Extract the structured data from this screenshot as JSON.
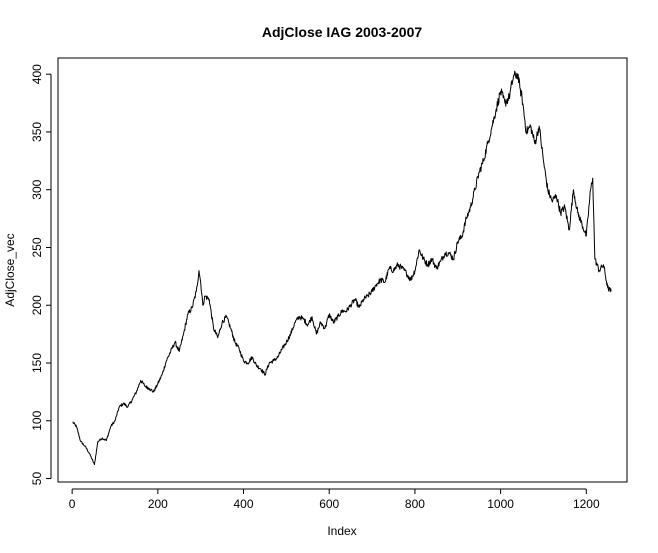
{
  "chart_data": {
    "type": "line",
    "title": "AdjClose IAG 2003-2007",
    "xlabel": "Index",
    "ylabel": "AdjClose_vec",
    "xlim": [
      -33,
      1295
    ],
    "ylim": [
      47,
      414
    ],
    "x_ticks": [
      0,
      200,
      400,
      600,
      800,
      1000,
      1200
    ],
    "y_ticks": [
      50,
      100,
      150,
      200,
      250,
      300,
      350,
      400
    ],
    "grid": false,
    "legend": "none",
    "line_color": "#000000",
    "series": [
      {
        "x": [
          1,
          10,
          20,
          30,
          40,
          52,
          60,
          70,
          80,
          90,
          100,
          110,
          120,
          130,
          140,
          150,
          160,
          170,
          180,
          190,
          200,
          210,
          220,
          230,
          240,
          250,
          260,
          270,
          280,
          290,
          296,
          300,
          305,
          310,
          320,
          330,
          340,
          350,
          360,
          370,
          380,
          390,
          400,
          410,
          420,
          430,
          440,
          450,
          460,
          470,
          480,
          490,
          500,
          510,
          520,
          530,
          540,
          550,
          560,
          570,
          580,
          590,
          600,
          610,
          620,
          630,
          640,
          650,
          660,
          670,
          680,
          690,
          700,
          710,
          720,
          730,
          740,
          750,
          760,
          770,
          780,
          790,
          800,
          810,
          820,
          830,
          840,
          850,
          860,
          870,
          880,
          890,
          900,
          910,
          920,
          930,
          940,
          950,
          960,
          970,
          980,
          990,
          1000,
          1010,
          1020,
          1030,
          1040,
          1045,
          1050,
          1060,
          1070,
          1080,
          1090,
          1100,
          1110,
          1120,
          1130,
          1140,
          1150,
          1160,
          1170,
          1180,
          1190,
          1200,
          1210,
          1215,
          1220,
          1230,
          1240,
          1250,
          1258
        ],
        "y": [
          99,
          95,
          82,
          78,
          72,
          62,
          82,
          85,
          83,
          95,
          100,
          112,
          115,
          112,
          118,
          125,
          135,
          130,
          128,
          125,
          132,
          140,
          152,
          160,
          168,
          160,
          175,
          192,
          198,
          212,
          230,
          220,
          200,
          208,
          205,
          180,
          172,
          185,
          190,
          180,
          168,
          162,
          152,
          150,
          155,
          148,
          145,
          140,
          150,
          152,
          155,
          162,
          168,
          175,
          185,
          190,
          188,
          183,
          190,
          175,
          185,
          180,
          192,
          185,
          190,
          195,
          195,
          200,
          205,
          198,
          205,
          208,
          212,
          218,
          222,
          220,
          232,
          230,
          235,
          232,
          228,
          222,
          230,
          248,
          240,
          235,
          240,
          232,
          238,
          245,
          245,
          240,
          255,
          260,
          275,
          285,
          300,
          315,
          325,
          340,
          355,
          370,
          385,
          375,
          380,
          398,
          400,
          388,
          380,
          350,
          355,
          340,
          355,
          325,
          300,
          290,
          295,
          280,
          285,
          265,
          300,
          280,
          270,
          260,
          300,
          310,
          240,
          230,
          235,
          215,
          212
        ]
      }
    ]
  }
}
